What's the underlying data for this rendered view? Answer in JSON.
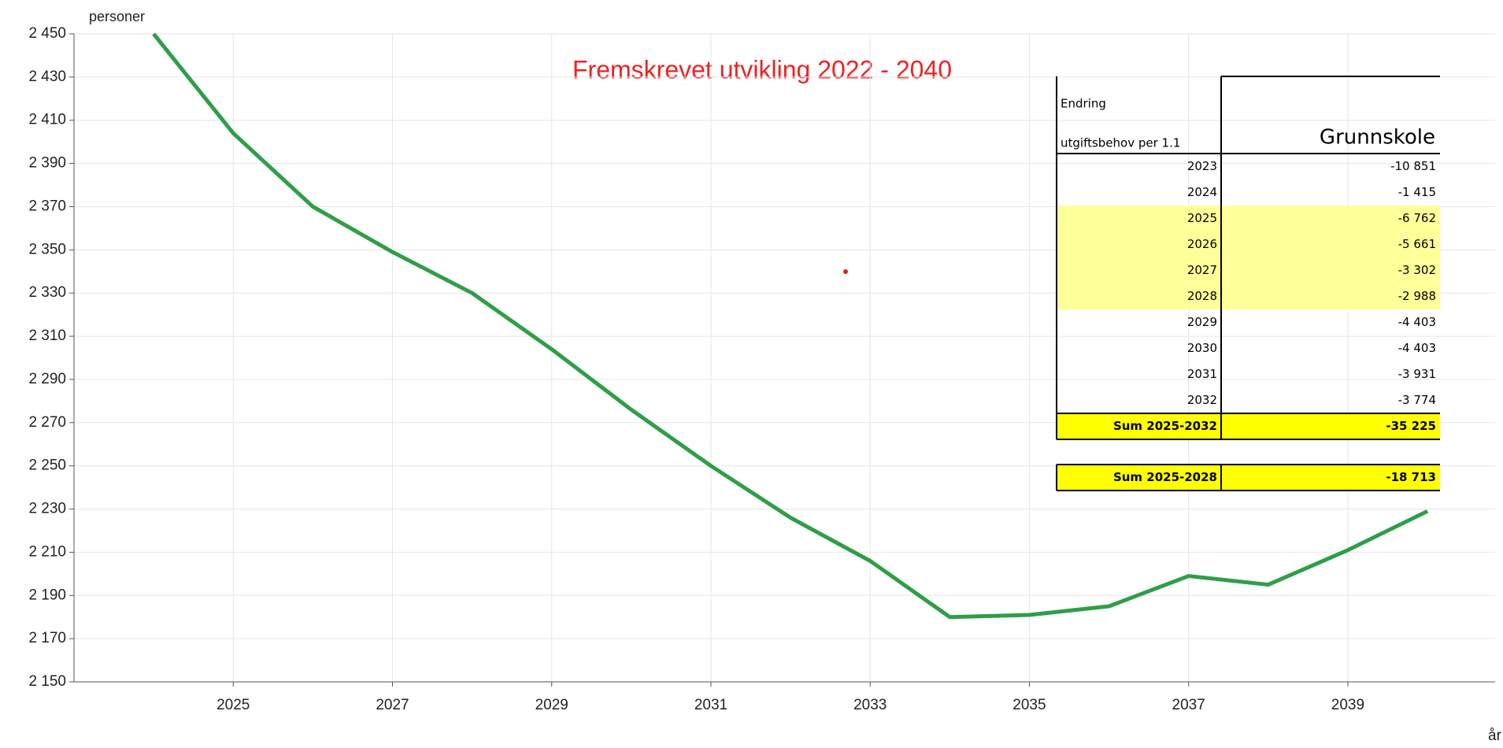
{
  "chart_data": {
    "type": "line",
    "title": "Fremskrevet utvikling 2022 - 2040",
    "y_label": "personer",
    "x_label": "år",
    "x": [
      2024,
      2025,
      2026,
      2027,
      2028,
      2029,
      2030,
      2031,
      2032,
      2033,
      2034,
      2035,
      2036,
      2037,
      2038,
      2039,
      2040
    ],
    "series": [
      {
        "color": "#2e9e48",
        "values": [
          2450,
          2404,
          2370,
          2349,
          2330,
          2304,
          2276,
          2250,
          2226,
          2206,
          2180,
          2181,
          2185,
          2199,
          2195,
          2211,
          2229
        ]
      }
    ],
    "xlim": [
      2023,
      2040.85
    ],
    "xticks": [
      2025,
      2027,
      2029,
      2031,
      2033,
      2035,
      2037,
      2039
    ],
    "ylim": [
      2150,
      2450
    ],
    "yticks": [
      {
        "value": 2150,
        "label": "2 150"
      },
      {
        "value": 2170,
        "label": "2 170"
      },
      {
        "value": 2190,
        "label": "2 190"
      },
      {
        "value": 2210,
        "label": "2 210"
      },
      {
        "value": 2230,
        "label": "2 230"
      },
      {
        "value": 2250,
        "label": "2 250"
      },
      {
        "value": 2270,
        "label": "2 270"
      },
      {
        "value": 2290,
        "label": "2 290"
      },
      {
        "value": 2310,
        "label": "2 310"
      },
      {
        "value": 2330,
        "label": "2 330"
      },
      {
        "value": 2350,
        "label": "2 350"
      },
      {
        "value": 2370,
        "label": "2 370"
      },
      {
        "value": 2390,
        "label": "2 390"
      },
      {
        "value": 2410,
        "label": "2 410"
      },
      {
        "value": 2430,
        "label": "2 430"
      },
      {
        "value": 2450,
        "label": "2 450"
      }
    ],
    "grid": true
  },
  "table": {
    "header": [
      "Endring",
      "utgiftsbehov per 1.1",
      "Grunnskole"
    ],
    "highlight_color": "#ffff99",
    "sum_color": "#ffff00",
    "rows": [
      {
        "year": 2023,
        "value": "-10 851"
      },
      {
        "year": 2024,
        "value": "-1 415"
      },
      {
        "year": 2025,
        "value": "-6 762",
        "highlight": true
      },
      {
        "year": 2026,
        "value": "-5 661",
        "highlight": true
      },
      {
        "year": 2027,
        "value": "-3 302",
        "highlight": true
      },
      {
        "year": 2028,
        "value": "-2 988",
        "highlight": true
      },
      {
        "year": 2029,
        "value": "-4 403"
      },
      {
        "year": 2030,
        "value": "-4 403"
      },
      {
        "year": 2031,
        "value": "-3 931"
      },
      {
        "year": 2032,
        "value": "-3 774"
      }
    ],
    "sums": [
      {
        "label": "Sum 2025-2032",
        "value": "-35 225"
      },
      {
        "label": "Sum 2025-2028",
        "value": "-18 713"
      }
    ]
  }
}
